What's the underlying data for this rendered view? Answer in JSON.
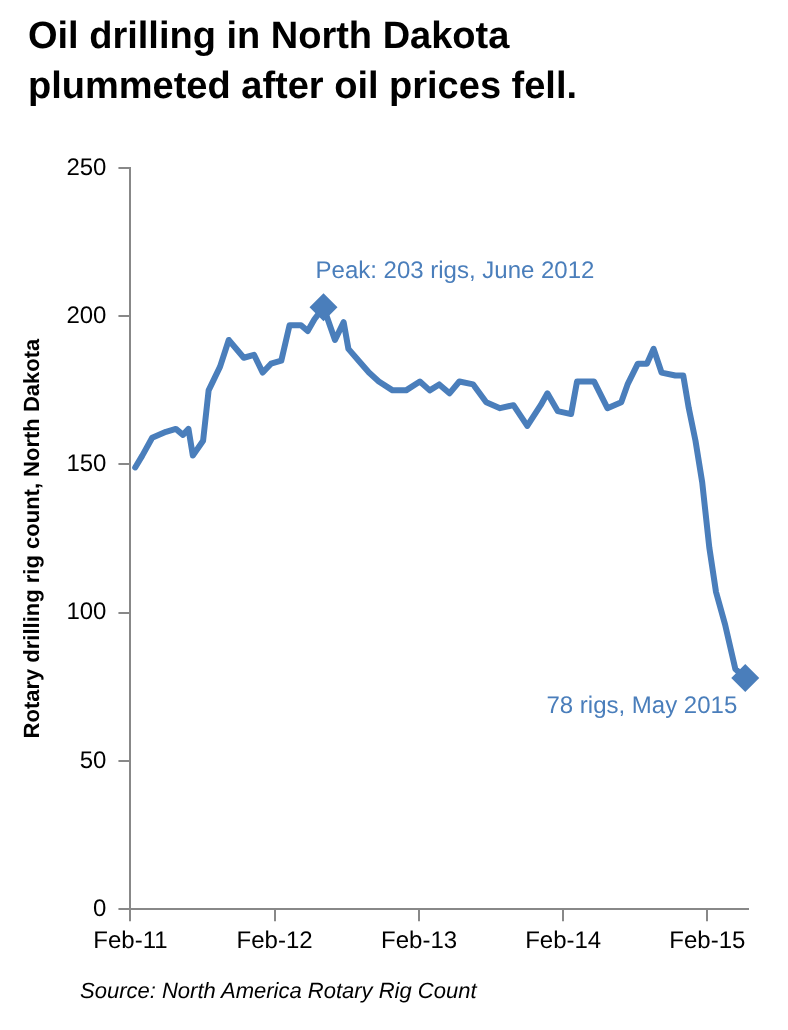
{
  "chart_data": {
    "type": "line",
    "title": "Oil drilling in North Dakota plummeted after oil prices fell.",
    "ylabel": "Rotary drilling rig count, North Dakota",
    "x": [
      "2011-02-13",
      "2011-03-03",
      "2011-03-28",
      "2011-05-02",
      "2011-05-27",
      "2011-06-14",
      "2011-06-28",
      "2011-07-09",
      "2011-08-04",
      "2011-08-18",
      "2011-09-16",
      "2011-10-08",
      "2011-11-15",
      "2011-12-11",
      "2012-01-02",
      "2012-01-23",
      "2012-02-18",
      "2012-03-10",
      "2012-04-08",
      "2012-04-25",
      "2012-05-12",
      "2012-06-04",
      "2012-07-03",
      "2012-07-25",
      "2012-08-06",
      "2012-09-01",
      "2012-09-27",
      "2012-10-22",
      "2012-11-26",
      "2012-12-30",
      "2013-02-03",
      "2013-02-28",
      "2013-03-24",
      "2013-04-19",
      "2013-05-14",
      "2013-06-18",
      "2013-07-21",
      "2013-08-25",
      "2013-09-28",
      "2013-11-02",
      "2013-12-06",
      "2013-12-23",
      "2014-01-18",
      "2014-02-21",
      "2014-03-08",
      "2014-04-20",
      "2014-05-24",
      "2014-06-28",
      "2014-07-14",
      "2014-08-09",
      "2014-09-01",
      "2014-09-18",
      "2014-10-08",
      "2014-11-12",
      "2014-12-02",
      "2014-12-16",
      "2015-01-02",
      "2015-01-19",
      "2015-02-06",
      "2015-02-23",
      "2015-03-18",
      "2015-04-13",
      "2015-05-08"
    ],
    "series": [
      {
        "color": "#4a7ebb",
        "values": [
          149,
          153,
          159,
          161,
          162,
          160,
          162,
          153,
          158,
          175,
          183,
          192,
          186,
          187,
          181,
          184,
          185,
          197,
          197,
          195,
          199,
          203,
          192,
          198,
          189,
          185,
          181,
          178,
          175,
          175,
          178,
          175,
          177,
          174,
          178,
          177,
          171,
          169,
          170,
          163,
          170,
          174,
          168,
          167,
          178,
          178,
          169,
          171,
          177,
          184,
          184,
          189,
          181,
          180,
          180,
          169,
          158,
          144,
          122,
          107,
          96,
          81,
          78
        ]
      }
    ],
    "xlim": [
      "2011-02-01",
      "2015-05-15"
    ],
    "xticks": [
      {
        "value": "2011-02-01",
        "label": "Feb-11"
      },
      {
        "value": "2012-02-01",
        "label": "Feb-12"
      },
      {
        "value": "2013-02-01",
        "label": "Feb-13"
      },
      {
        "value": "2014-02-01",
        "label": "Feb-14"
      },
      {
        "value": "2015-02-01",
        "label": "Feb-15"
      }
    ],
    "ylim": [
      0,
      250
    ],
    "yticks": [
      0,
      50,
      100,
      150,
      200,
      250
    ],
    "grid": false,
    "legend": false,
    "marker": "none",
    "line_style": "solid",
    "annotations": [
      {
        "text": "Peak: 203 rigs, June 2012",
        "x": "2012-06-04",
        "y": 203
      },
      {
        "text": "78 rigs, May 2015",
        "x": "2015-05-08",
        "y": 78
      },
      "Source: North America Rotary Rig Count"
    ]
  }
}
